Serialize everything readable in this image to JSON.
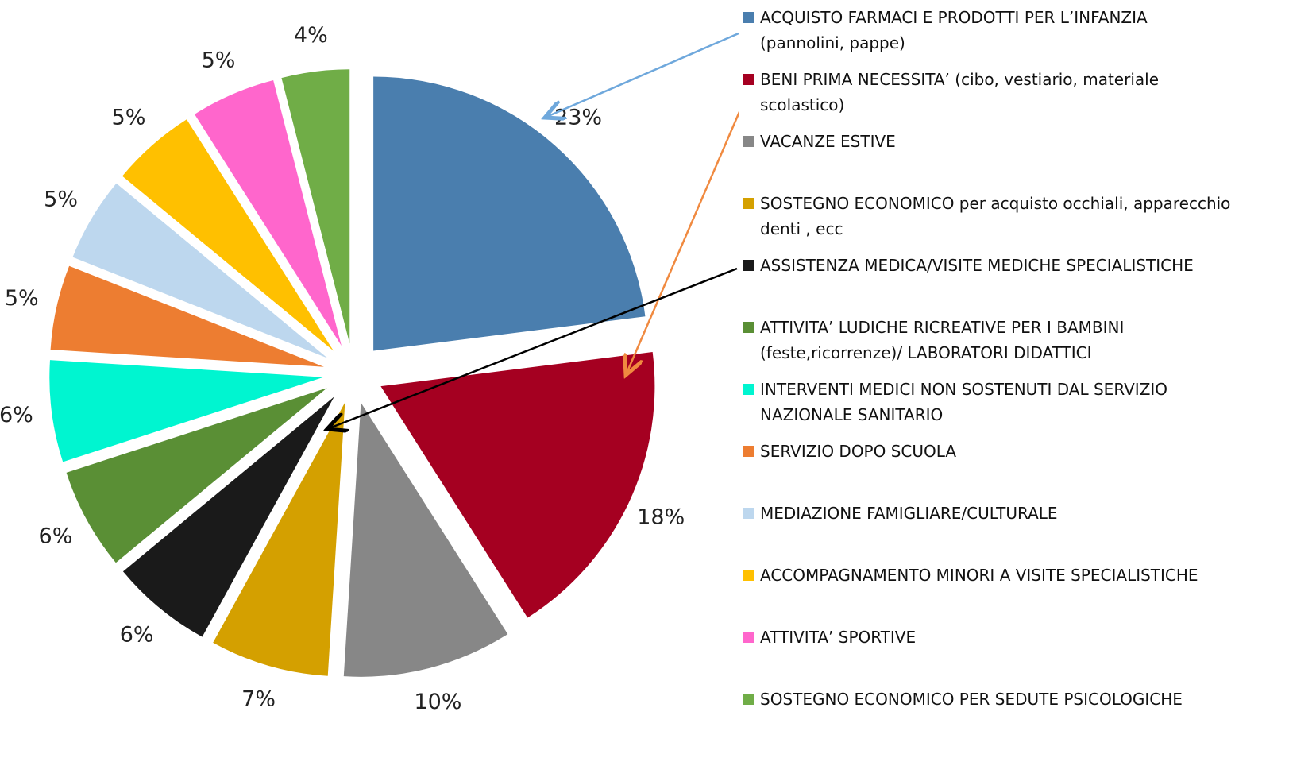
{
  "chart_data": {
    "type": "pie",
    "categories": [
      "ACQUISTO FARMACI E PRODOTTI PER L’INFANZIA (pannolini, pappe)",
      "BENI PRIMA NECESSITA’ (cibo, vestiario, materiale scolastico)",
      "VACANZE ESTIVE",
      "SOSTEGNO ECONOMICO per acquisto occhiali, apparecchio denti , ecc",
      "ASSISTENZA MEDICA/VISITE MEDICHE SPECIALISTICHE",
      "ATTIVITA’ LUDICHE RICREATIVE PER I BAMBINI (feste,ricorrenze)/ LABORATORI DIDATTICI",
      "INTERVENTI MEDICI NON SOSTENUTI DAL SERVIZIO NAZIONALE SANITARIO",
      "SERVIZIO DOPO SCUOLA",
      "MEDIAZIONE FAMIGLIARE/CULTURALE",
      "ACCOMPAGNAMENTO MINORI A VISITE SPECIALISTICHE",
      "ATTIVITA’ SPORTIVE",
      "SOSTEGNO ECONOMICO PER SEDUTE PSICOLOGICHE"
    ],
    "values": [
      23,
      18,
      10,
      7,
      6,
      6,
      6,
      5,
      5,
      5,
      5,
      4
    ],
    "value_labels": [
      "23%",
      "18%",
      "10%",
      "7%",
      "6%",
      "6%",
      "6%",
      "5%",
      "5%",
      "5%",
      "5%",
      "4%"
    ],
    "colors": [
      "#4a7eae",
      "#a50021",
      "#878787",
      "#d4a000",
      "#1a1a1a",
      "#5a8f35",
      "#00f5d0",
      "#ed7d31",
      "#bdd7ee",
      "#ffc000",
      "#ff66cc",
      "#70ad47"
    ]
  }
}
